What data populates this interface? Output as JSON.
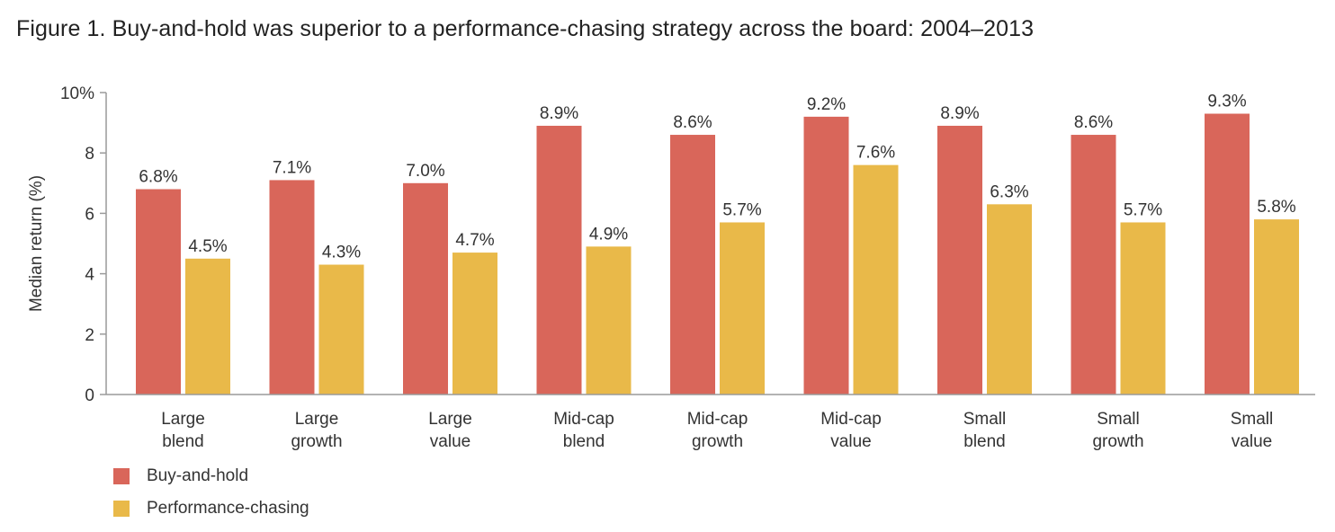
{
  "title": "Figure 1. Buy-and-hold was superior to a performance-chasing strategy across the board: 2004–2013",
  "colors": {
    "buy_and_hold": "#d9665a",
    "performance_chasing": "#e9b949",
    "axis": "#9a9a9a",
    "text": "#333333"
  },
  "chart_data": {
    "type": "bar",
    "categories": [
      [
        "Large",
        "blend"
      ],
      [
        "Large",
        "growth"
      ],
      [
        "Large",
        "value"
      ],
      [
        "Mid-cap",
        "blend"
      ],
      [
        "Mid-cap",
        "growth"
      ],
      [
        "Mid-cap",
        "value"
      ],
      [
        "Small",
        "blend"
      ],
      [
        "Small",
        "growth"
      ],
      [
        "Small",
        "value"
      ]
    ],
    "series": [
      {
        "name": "Buy-and-hold",
        "values": [
          6.8,
          7.1,
          7.0,
          8.9,
          8.6,
          9.2,
          8.9,
          8.6,
          9.3
        ],
        "labels": [
          "6.8%",
          "7.1%",
          "7.0%",
          "8.9%",
          "8.6%",
          "9.2%",
          "8.9%",
          "8.6%",
          "9.3%"
        ]
      },
      {
        "name": "Performance-chasing",
        "values": [
          4.5,
          4.3,
          4.7,
          4.9,
          5.7,
          7.6,
          6.3,
          5.7,
          5.8
        ],
        "labels": [
          "4.5%",
          "4.3%",
          "4.7%",
          "4.9%",
          "5.7%",
          "7.6%",
          "6.3%",
          "5.7%",
          "5.8%"
        ]
      }
    ],
    "ylabel": "Median return (%)",
    "xlabel": "",
    "ylim": [
      0,
      10
    ],
    "yticks": [
      0,
      2,
      4,
      6,
      8,
      10
    ],
    "ytick_labels": [
      "0",
      "2",
      "4",
      "6",
      "8",
      "10%"
    ],
    "grid": false,
    "legend_position": "bottom-left"
  },
  "legend": {
    "items": [
      {
        "label": "Buy-and-hold",
        "color": "#d9665a"
      },
      {
        "label": "Performance-chasing",
        "color": "#e9b949"
      }
    ]
  }
}
